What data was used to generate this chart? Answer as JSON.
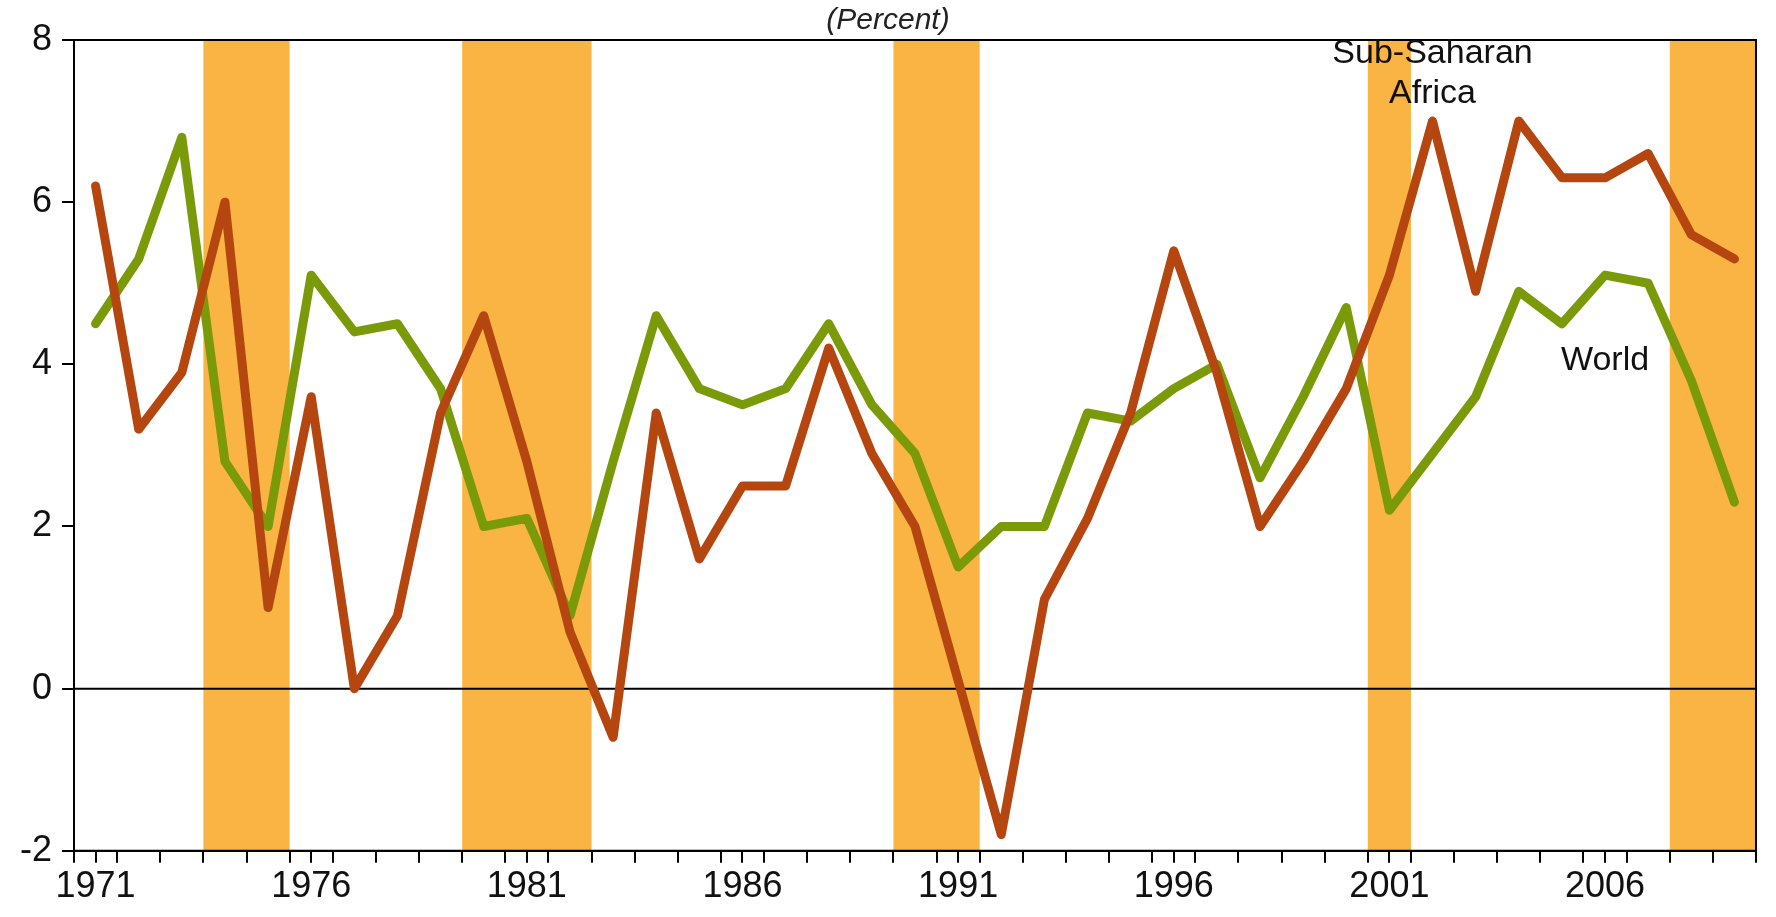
{
  "chart_data": {
    "type": "line",
    "subtitle": "(Percent)",
    "x": [
      1971,
      1972,
      1973,
      1974,
      1975,
      1976,
      1977,
      1978,
      1979,
      1980,
      1981,
      1982,
      1983,
      1984,
      1985,
      1986,
      1987,
      1988,
      1989,
      1990,
      1991,
      1992,
      1993,
      1994,
      1995,
      1996,
      1997,
      1998,
      1999,
      2000,
      2001,
      2002,
      2003,
      2004,
      2005,
      2006,
      2007,
      2008,
      2009
    ],
    "series": [
      {
        "name": "Sub-Saharan Africa",
        "color": "#b5460f",
        "values": [
          6.2,
          3.2,
          3.9,
          6.0,
          1.0,
          3.6,
          0.0,
          0.9,
          3.4,
          4.6,
          2.8,
          0.7,
          -0.6,
          3.4,
          1.6,
          2.5,
          2.5,
          4.2,
          2.9,
          2.0,
          0.1,
          -1.8,
          1.1,
          2.1,
          3.4,
          5.4,
          3.9,
          2.0,
          2.8,
          3.7,
          5.1,
          7.0,
          4.9,
          7.0,
          6.3,
          6.3,
          6.6,
          5.6,
          5.3
        ]
      },
      {
        "name": "World",
        "color": "#7a9a0a",
        "values": [
          4.5,
          5.3,
          6.8,
          2.8,
          2.0,
          5.1,
          4.4,
          4.5,
          3.7,
          2.0,
          2.1,
          0.9,
          2.8,
          4.6,
          3.7,
          3.5,
          3.7,
          4.5,
          3.5,
          2.9,
          1.5,
          2.0,
          2.0,
          3.4,
          3.3,
          3.7,
          4.0,
          2.6,
          3.6,
          4.7,
          2.2,
          2.9,
          3.6,
          4.9,
          4.5,
          5.1,
          5.0,
          3.8,
          2.3
        ]
      }
    ],
    "xlim": [
      1970.5,
      2009.5
    ],
    "xticks": [
      {
        "value": 1970.5,
        "label": null
      },
      {
        "value": 1971,
        "label": "1971"
      },
      {
        "value": 1971.5,
        "label": null
      },
      {
        "value": 1972.5,
        "label": null
      },
      {
        "value": 1973.5,
        "label": null
      },
      {
        "value": 1974.5,
        "label": null
      },
      {
        "value": 1975.5,
        "label": null
      },
      {
        "value": 1976,
        "label": "1976"
      },
      {
        "value": 1976.5,
        "label": null
      },
      {
        "value": 1977.5,
        "label": null
      },
      {
        "value": 1978.5,
        "label": null
      },
      {
        "value": 1979.5,
        "label": null
      },
      {
        "value": 1980.5,
        "label": null
      },
      {
        "value": 1981,
        "label": "1981"
      },
      {
        "value": 1981.5,
        "label": null
      },
      {
        "value": 1982.5,
        "label": null
      },
      {
        "value": 1983.5,
        "label": null
      },
      {
        "value": 1984.5,
        "label": null
      },
      {
        "value": 1985.5,
        "label": null
      },
      {
        "value": 1986,
        "label": "1986"
      },
      {
        "value": 1986.5,
        "label": null
      },
      {
        "value": 1987.5,
        "label": null
      },
      {
        "value": 1988.5,
        "label": null
      },
      {
        "value": 1989.5,
        "label": null
      },
      {
        "value": 1990.5,
        "label": null
      },
      {
        "value": 1991,
        "label": "1991"
      },
      {
        "value": 1991.5,
        "label": null
      },
      {
        "value": 1992.5,
        "label": null
      },
      {
        "value": 1993.5,
        "label": null
      },
      {
        "value": 1994.5,
        "label": null
      },
      {
        "value": 1995.5,
        "label": null
      },
      {
        "value": 1996,
        "label": "1996"
      },
      {
        "value": 1996.5,
        "label": null
      },
      {
        "value": 1997.5,
        "label": null
      },
      {
        "value": 1998.5,
        "label": null
      },
      {
        "value": 1999.5,
        "label": null
      },
      {
        "value": 2000.5,
        "label": null
      },
      {
        "value": 2001,
        "label": "2001"
      },
      {
        "value": 2001.5,
        "label": null
      },
      {
        "value": 2002.5,
        "label": null
      },
      {
        "value": 2003.5,
        "label": null
      },
      {
        "value": 2004.5,
        "label": null
      },
      {
        "value": 2005.5,
        "label": null
      },
      {
        "value": 2006,
        "label": "2006"
      },
      {
        "value": 2006.5,
        "label": null
      },
      {
        "value": 2007.5,
        "label": null
      },
      {
        "value": 2008.5,
        "label": null
      },
      {
        "value": 2009.5,
        "label": null
      }
    ],
    "ylim": [
      -2,
      8
    ],
    "yticks": [
      -2,
      0,
      2,
      4,
      6,
      8
    ],
    "ref_lines": [
      {
        "axis": "y",
        "value": 0,
        "color": "#000000"
      }
    ],
    "bands": [
      {
        "axis": "x",
        "from": 1973.5,
        "to": 1975.5,
        "color": "#f9b444"
      },
      {
        "axis": "x",
        "from": 1979.5,
        "to": 1982.5,
        "color": "#f9b444"
      },
      {
        "axis": "x",
        "from": 1989.5,
        "to": 1991.5,
        "color": "#f9b444"
      },
      {
        "axis": "x",
        "from": 2000.5,
        "to": 2001.5,
        "color": "#f9b444"
      },
      {
        "axis": "x",
        "from": 2007.5,
        "to": 2009.5,
        "color": "#f9b444"
      }
    ],
    "grid": false,
    "legend": false,
    "marker": "none",
    "line_style": "solid"
  }
}
